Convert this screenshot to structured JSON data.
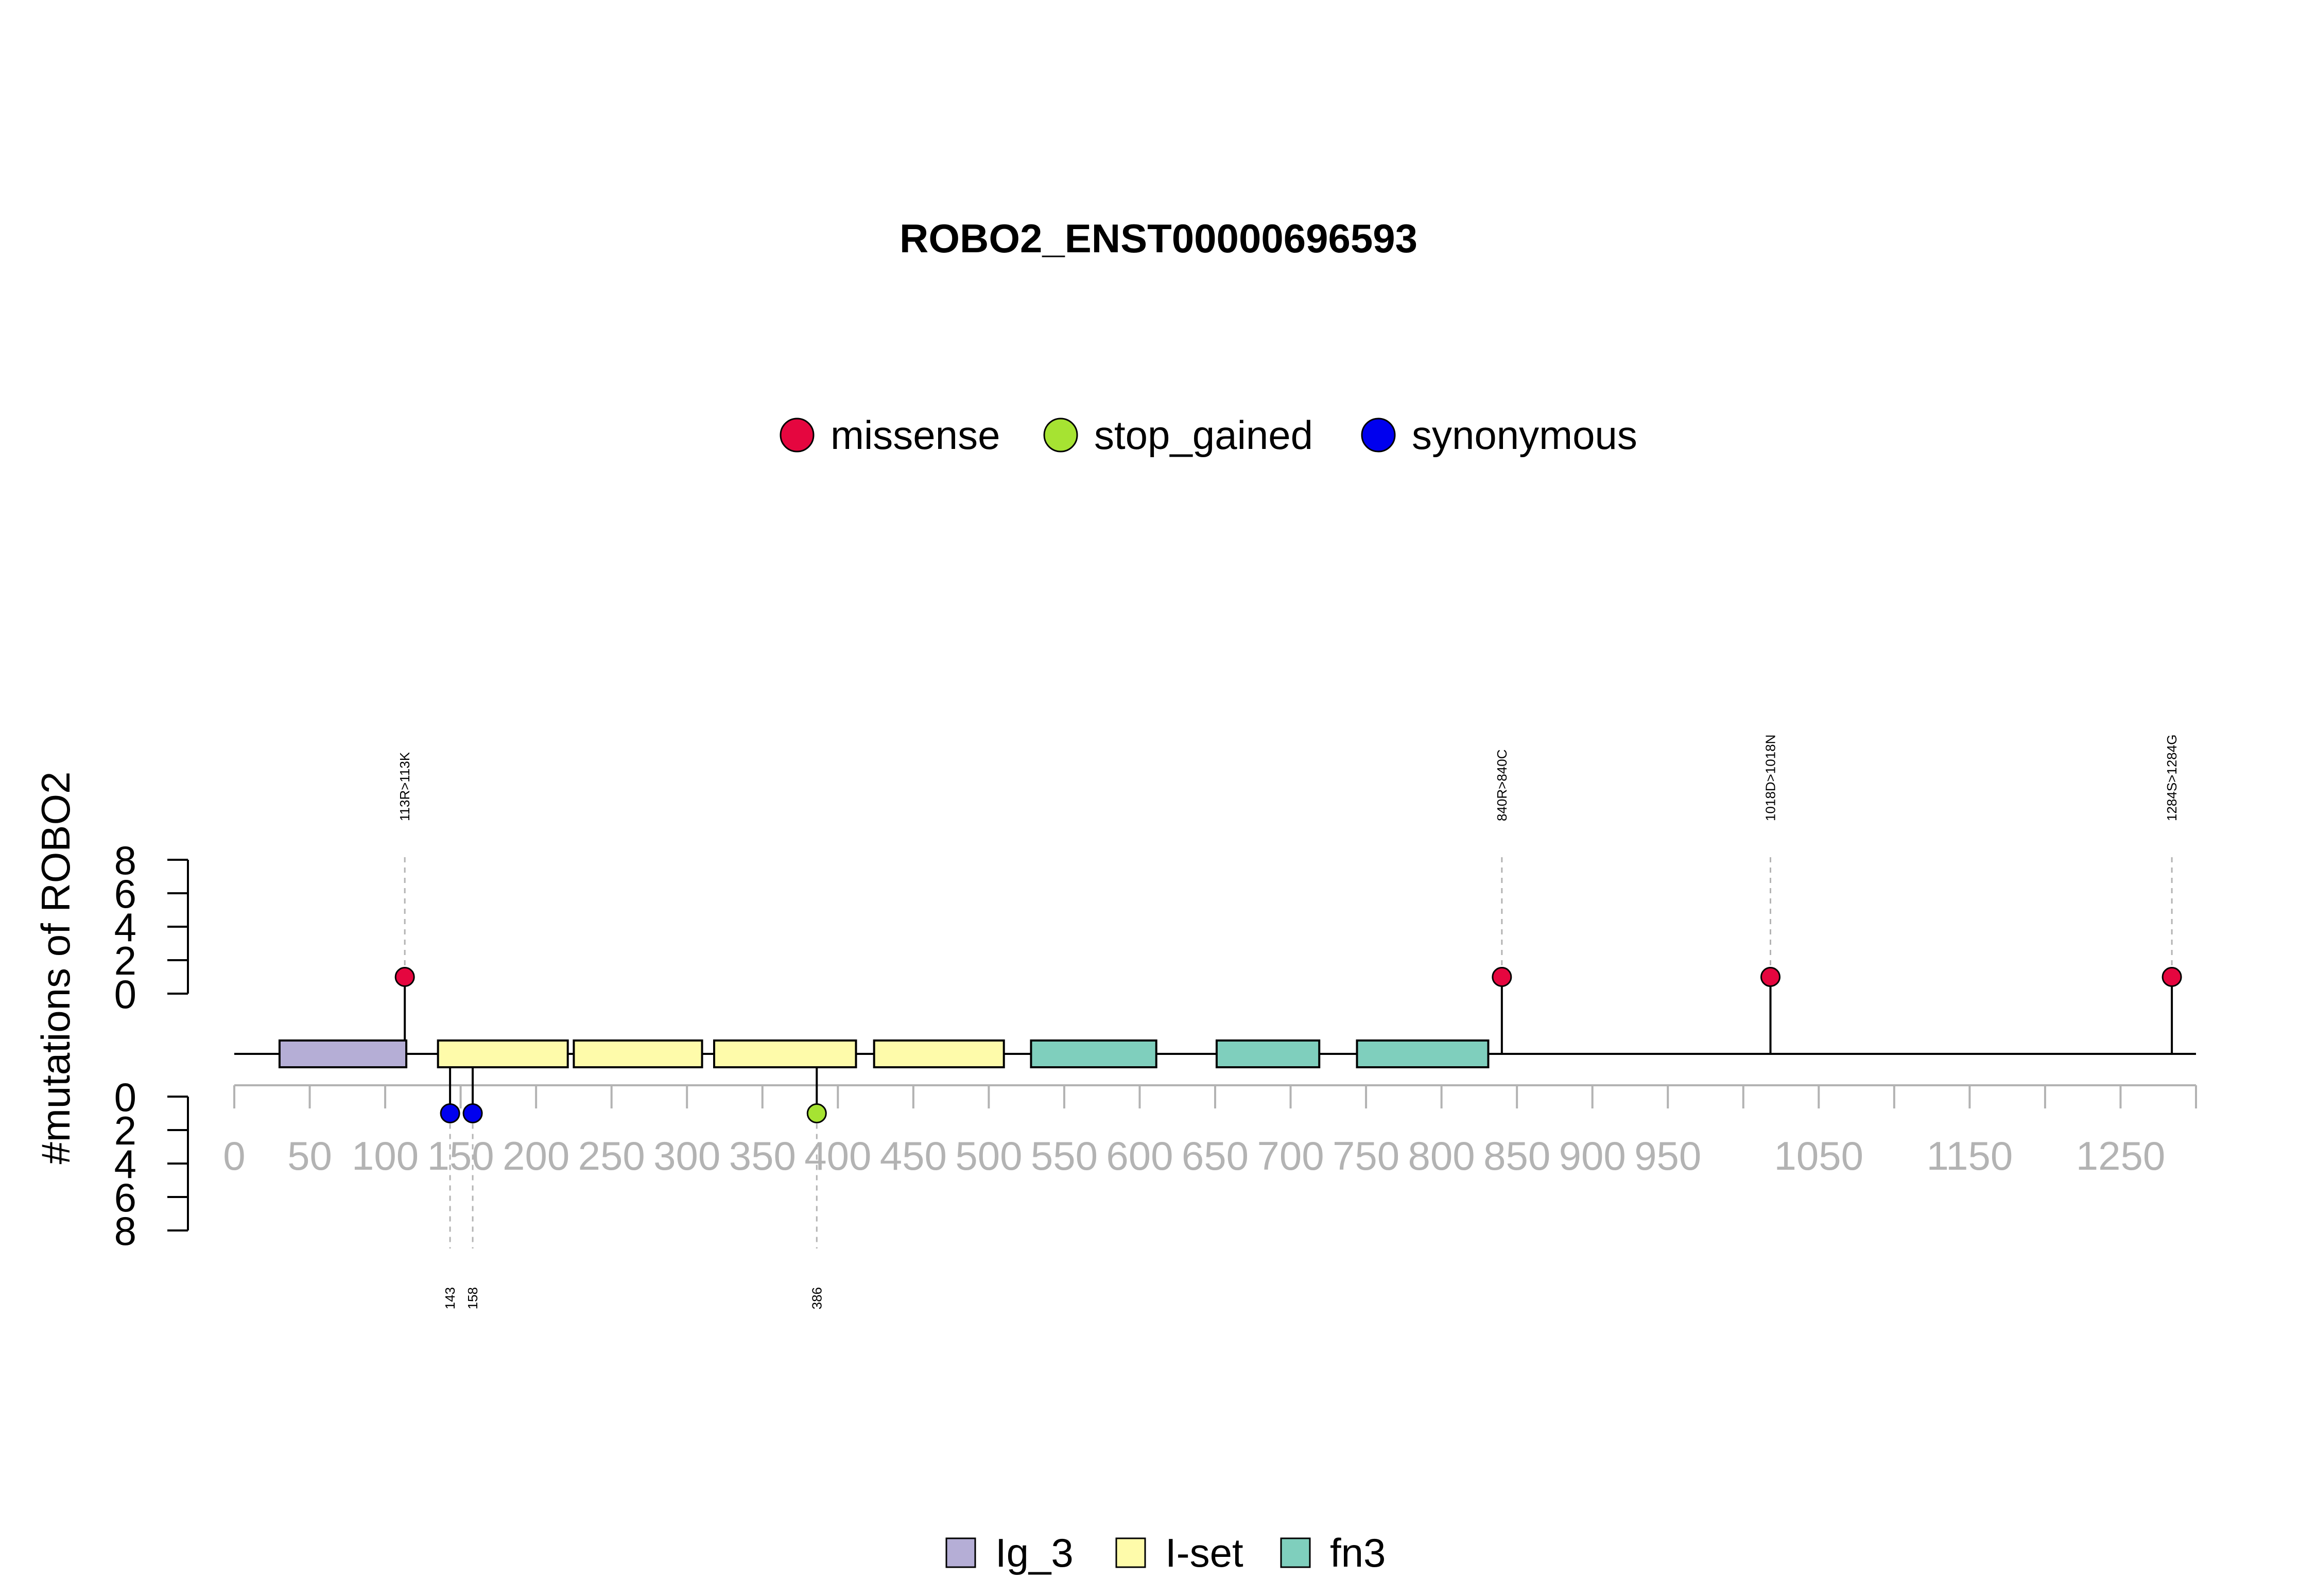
{
  "chart_data": {
    "type": "lollipop",
    "title": "ROBO2_ENST00000696593",
    "ylabel": "#mutations of ROBO2",
    "x_range": [
      0,
      1300
    ],
    "x_ticks": [
      0,
      50,
      100,
      150,
      200,
      250,
      300,
      350,
      400,
      450,
      500,
      550,
      600,
      650,
      700,
      750,
      800,
      850,
      900,
      950,
      1050,
      1150,
      1250
    ],
    "x_tick_marks": [
      0,
      50,
      100,
      150,
      200,
      250,
      300,
      350,
      400,
      450,
      500,
      550,
      600,
      650,
      700,
      750,
      800,
      850,
      900,
      950,
      1000,
      1050,
      1100,
      1150,
      1200,
      1250,
      1300
    ],
    "y_range": [
      0,
      8
    ],
    "y_ticks": [
      0,
      2,
      4,
      6,
      8
    ],
    "mutation_legend": [
      {
        "name": "missense",
        "color": "#e5063f"
      },
      {
        "name": "stop_gained",
        "color": "#a6e332"
      },
      {
        "name": "synonymous",
        "color": "#0000ee"
      }
    ],
    "domain_legend": [
      {
        "name": "Ig_3",
        "color": "#b5aed6"
      },
      {
        "name": "I-set",
        "color": "#fefbaa"
      },
      {
        "name": "fn3",
        "color": "#7fcfbd"
      }
    ],
    "domains": [
      {
        "name": "Ig_3",
        "start": 30,
        "end": 114
      },
      {
        "name": "I-set",
        "start": 135,
        "end": 221
      },
      {
        "name": "I-set",
        "start": 225,
        "end": 310
      },
      {
        "name": "I-set",
        "start": 318,
        "end": 412
      },
      {
        "name": "I-set",
        "start": 424,
        "end": 510
      },
      {
        "name": "fn3",
        "start": 528,
        "end": 611
      },
      {
        "name": "fn3",
        "start": 651,
        "end": 719
      },
      {
        "name": "fn3",
        "start": 744,
        "end": 831
      }
    ],
    "mutations_top": [
      {
        "position": 113,
        "count": 1,
        "type": "missense",
        "label": "113R>113K"
      },
      {
        "position": 840,
        "count": 1,
        "type": "missense",
        "label": "840R>840C"
      },
      {
        "position": 1018,
        "count": 1,
        "type": "missense",
        "label": "1018D>1018N"
      },
      {
        "position": 1284,
        "count": 1,
        "type": "missense",
        "label": "1284S>1284G"
      }
    ],
    "mutations_bottom": [
      {
        "position": 143,
        "count": 1,
        "type": "synonymous",
        "label": "143"
      },
      {
        "position": 158,
        "count": 1,
        "type": "synonymous",
        "label": "158"
      },
      {
        "position": 386,
        "count": 1,
        "type": "stop_gained",
        "label": "386"
      }
    ]
  }
}
